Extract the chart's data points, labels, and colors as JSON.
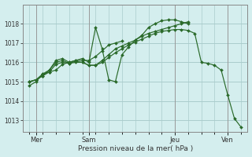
{
  "xlabel": "Pression niveau de la mer( hPa )",
  "bg_color": "#d4eeee",
  "plot_bg_color": "#d4eeee",
  "grid_color": "#aacccc",
  "line_color": "#2a6a2a",
  "marker_color": "#2a6a2a",
  "ylim": [
    1012.4,
    1019.0
  ],
  "yticks": [
    1013,
    1014,
    1015,
    1016,
    1017,
    1018
  ],
  "xlim": [
    -0.5,
    16.5
  ],
  "day_ticks": [
    0.5,
    4.5,
    11.0,
    15.0
  ],
  "day_labels": [
    "Mer",
    "Sam",
    "Jeu",
    "Ven"
  ],
  "minor_x_step": 1,
  "lines": [
    {
      "x": [
        0.0,
        0.5,
        1.0,
        1.5,
        2.0,
        2.5,
        3.0,
        3.5,
        4.0,
        4.5,
        5.0,
        5.5,
        6.0,
        6.5,
        7.0
      ],
      "y": [
        1015.0,
        1015.1,
        1015.3,
        1015.5,
        1015.6,
        1015.9,
        1016.0,
        1016.1,
        1016.1,
        1016.1,
        1016.3,
        1016.6,
        1016.9,
        1017.0,
        1017.1
      ]
    },
    {
      "x": [
        0.0,
        0.5,
        1.0,
        1.5,
        2.0,
        2.5,
        3.0,
        3.5,
        4.0,
        4.5,
        5.0,
        5.5,
        6.0,
        6.5,
        7.0,
        7.5,
        8.0,
        8.5,
        9.0,
        9.5,
        10.0,
        10.5,
        11.0,
        11.5,
        12.0
      ],
      "y": [
        1015.0,
        1015.1,
        1015.4,
        1015.6,
        1016.1,
        1016.2,
        1016.0,
        1016.1,
        1016.2,
        1016.0,
        1017.8,
        1016.7,
        1015.1,
        1015.0,
        1016.4,
        1016.8,
        1017.15,
        1017.4,
        1017.8,
        1018.0,
        1018.15,
        1018.2,
        1018.2,
        1018.1,
        1018.0
      ]
    },
    {
      "x": [
        0.0,
        0.5,
        1.0,
        1.5,
        2.0,
        2.5,
        3.0,
        3.5,
        4.0,
        4.5,
        5.0,
        5.5,
        6.0,
        6.5,
        7.0,
        7.5,
        8.0,
        8.5,
        9.0,
        9.5,
        10.0,
        10.5,
        11.0,
        11.5,
        12.0
      ],
      "y": [
        1015.0,
        1015.1,
        1015.3,
        1015.6,
        1016.0,
        1016.1,
        1015.95,
        1016.05,
        1016.0,
        1015.85,
        1015.85,
        1016.1,
        1016.4,
        1016.7,
        1016.85,
        1017.0,
        1017.15,
        1017.35,
        1017.5,
        1017.6,
        1017.7,
        1017.8,
        1017.9,
        1018.0,
        1018.1
      ]
    },
    {
      "x": [
        0.0,
        0.5,
        1.0,
        1.5,
        2.0,
        2.5,
        3.0,
        3.5,
        4.0,
        4.5,
        5.0,
        5.5,
        6.0,
        6.5,
        7.0,
        7.5,
        8.0,
        8.5,
        9.0,
        9.5,
        10.0,
        10.5,
        11.0,
        11.5,
        12.0,
        12.5,
        13.0,
        13.5,
        14.0,
        14.5,
        15.0,
        15.5,
        16.0
      ],
      "y": [
        1014.8,
        1015.0,
        1015.4,
        1015.5,
        1015.9,
        1016.0,
        1015.95,
        1016.0,
        1016.0,
        1015.85,
        1015.85,
        1016.0,
        1016.25,
        1016.5,
        1016.7,
        1016.9,
        1017.05,
        1017.2,
        1017.35,
        1017.5,
        1017.6,
        1017.65,
        1017.7,
        1017.7,
        1017.65,
        1017.5,
        1016.0,
        1015.95,
        1015.85,
        1015.6,
        1014.3,
        1013.1,
        1012.65
      ]
    }
  ]
}
